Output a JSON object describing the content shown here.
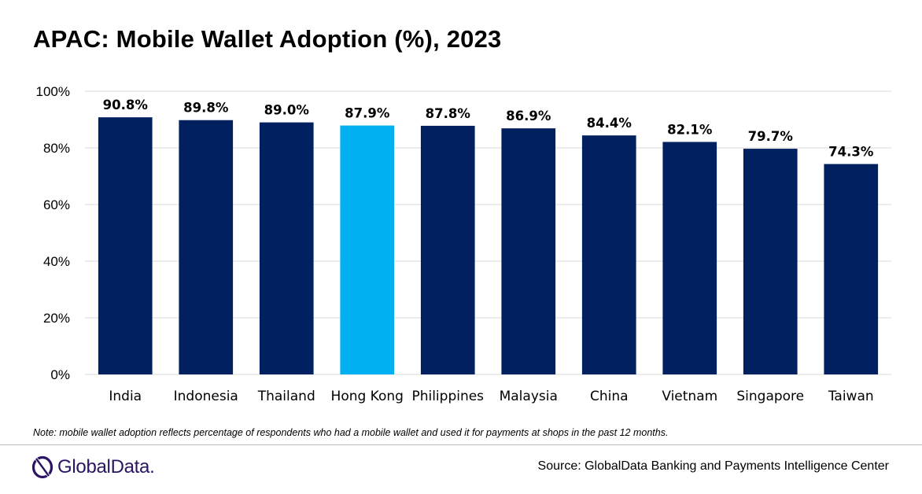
{
  "chart_data": {
    "type": "bar",
    "title": "APAC: Mobile Wallet Adoption (%), 2023",
    "categories": [
      "India",
      "Indonesia",
      "Thailand",
      "Hong Kong",
      "Philippines",
      "Malaysia",
      "China",
      "Vietnam",
      "Singapore",
      "Taiwan"
    ],
    "values": [
      90.8,
      89.8,
      89.0,
      87.9,
      87.8,
      86.9,
      84.4,
      82.1,
      79.7,
      74.3
    ],
    "data_labels": [
      "90.8%",
      "89.8%",
      "89.0%",
      "87.9%",
      "87.8%",
      "86.9%",
      "84.4%",
      "82.1%",
      "79.7%",
      "74.3%"
    ],
    "yticks": [
      0,
      20,
      40,
      60,
      80,
      100
    ],
    "ytick_labels": [
      "0%",
      "20%",
      "40%",
      "60%",
      "80%",
      "100%"
    ],
    "ylim": [
      0,
      100
    ],
    "grid": true,
    "xlabel": "",
    "ylabel": "",
    "highlight_category": "Hong Kong",
    "colors": {
      "bar": "#002060",
      "highlight": "#00b0f0",
      "grid": "#d9d9d9"
    }
  },
  "note": "Note: mobile wallet adoption reflects percentage of respondents who had a mobile wallet and used it for payments at shops in the past 12 months.",
  "footer": {
    "logo_text": "GlobalData.",
    "logo_icon": "globaldata-logo-icon",
    "source": "Source: GlobalData Banking and Payments Intelligence Center"
  }
}
